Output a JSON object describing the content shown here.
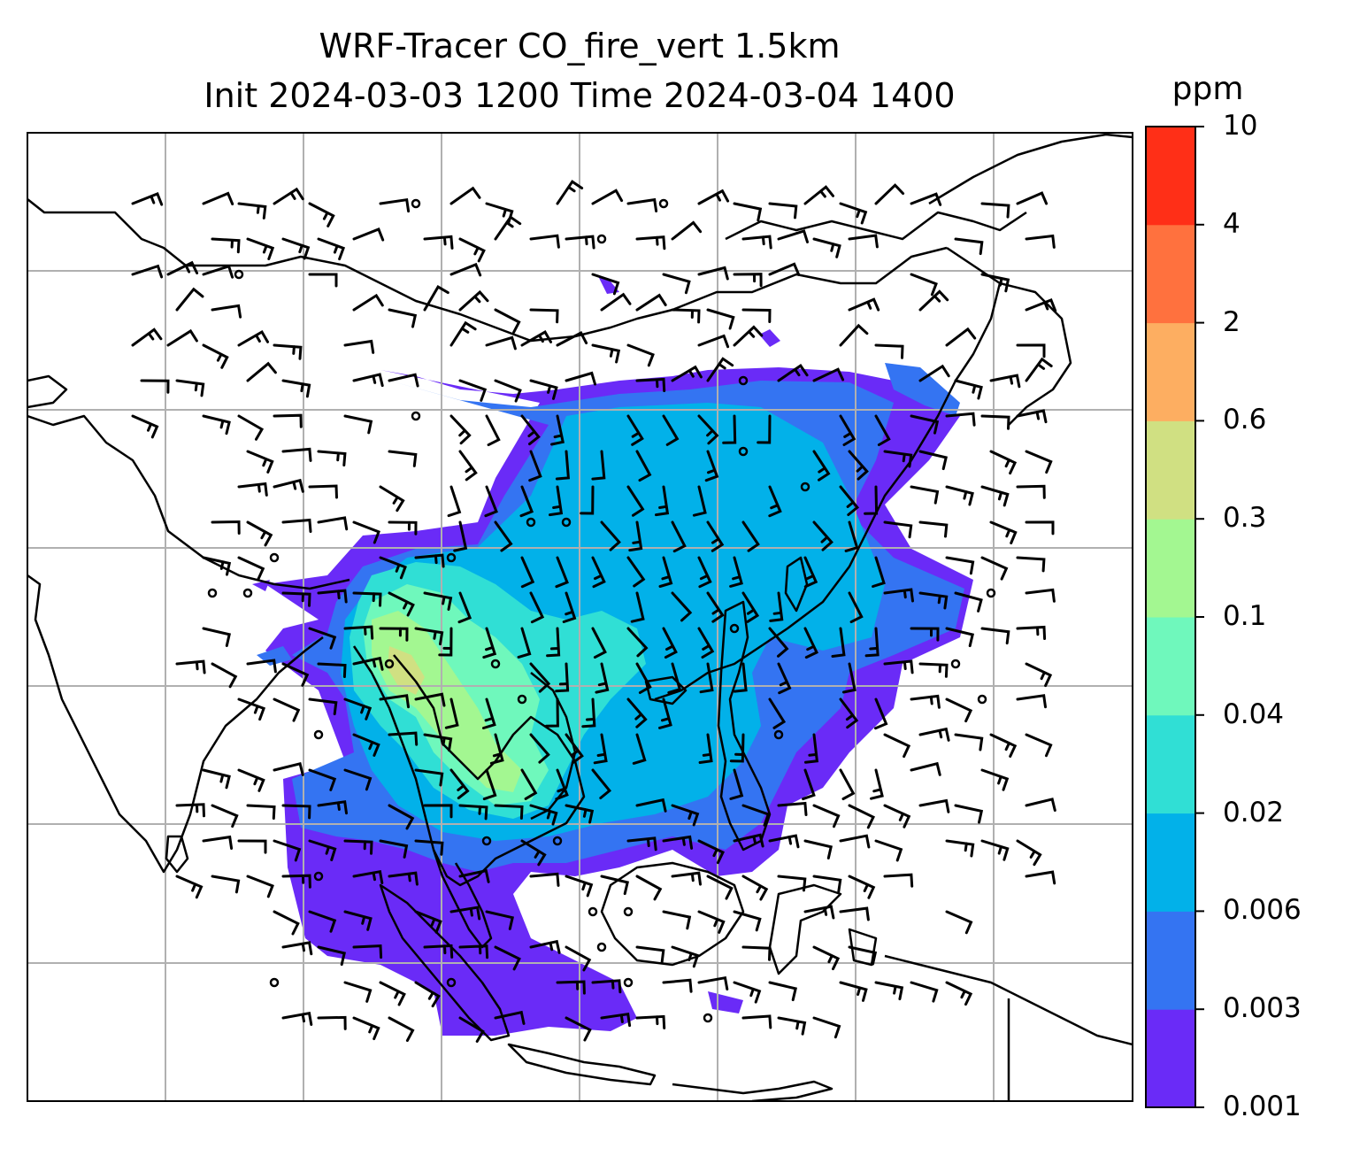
{
  "title": {
    "line1": "WRF-Tracer CO_fire_vert 1.5km",
    "line2": "Init 2024-03-03 1200 Time 2024-03-04 1400"
  },
  "colorbar": {
    "unit": "ppm",
    "levels": [
      "0.001",
      "0.003",
      "0.006",
      "0.02",
      "0.04",
      "0.1",
      "0.3",
      "0.6",
      "2",
      "4",
      "10"
    ],
    "colors": [
      "#6a2bf7",
      "#3474f2",
      "#02b1e9",
      "#30dfd5",
      "#6ff8bc",
      "#a3f791",
      "#d0e082",
      "#fdae61",
      "#ff713e",
      "#ff2f17"
    ]
  },
  "map": {
    "grid_color": "#b0b0b0",
    "coastline_color": "#000000",
    "overlays": [
      "gridlines",
      "coastlines",
      "tracer-shading",
      "wind-barbs",
      "calm-circles"
    ]
  }
}
